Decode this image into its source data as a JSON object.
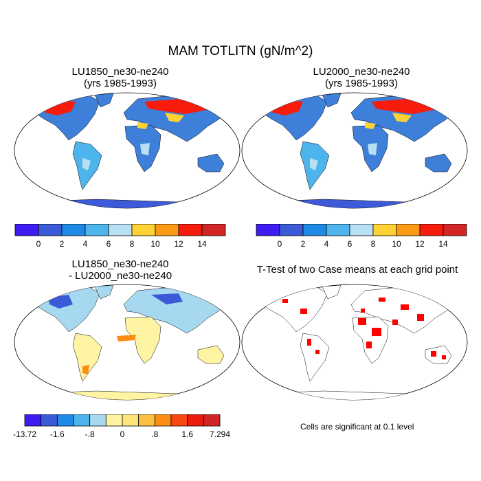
{
  "figure": {
    "title": "MAM TOTLITN (gN/m^2)",
    "panels": [
      {
        "line1": "LU1850_ne30-ne240",
        "line2": "(yrs 1985-1993)"
      },
      {
        "line1": "LU2000_ne30-ne240",
        "line2": "(yrs 1985-1993)"
      },
      {
        "line1": "LU1850_ne30-ne240",
        "line2": "- LU2000_ne30-ne240"
      },
      {
        "line1": "T-Test of two Case means at each grid point",
        "line2": ""
      }
    ],
    "note": "Cells are significant at 0.1 level"
  },
  "colorbars": {
    "absolute": {
      "colors": [
        "#3d1df2",
        "#3a5ad8",
        "#1e8ae6",
        "#4db4ec",
        "#b8e0f4",
        "#fed233",
        "#fb9a14",
        "#f81c0c",
        "#d22626"
      ],
      "labels": [
        "0",
        "2",
        "4",
        "6",
        "8",
        "10",
        "12",
        "14"
      ]
    },
    "difference": {
      "colors": [
        "#3d1df2",
        "#3a5ad8",
        "#1e8ae6",
        "#4db4ec",
        "#a6d8f0",
        "#fef4a4",
        "#fee57a",
        "#fdc040",
        "#fb8c14",
        "#f84a10",
        "#ea1c10",
        "#d22626"
      ],
      "labels": [
        "-13.72",
        "-1.6",
        "-.8",
        "0",
        ".8",
        "1.6",
        "7.294"
      ]
    }
  }
}
